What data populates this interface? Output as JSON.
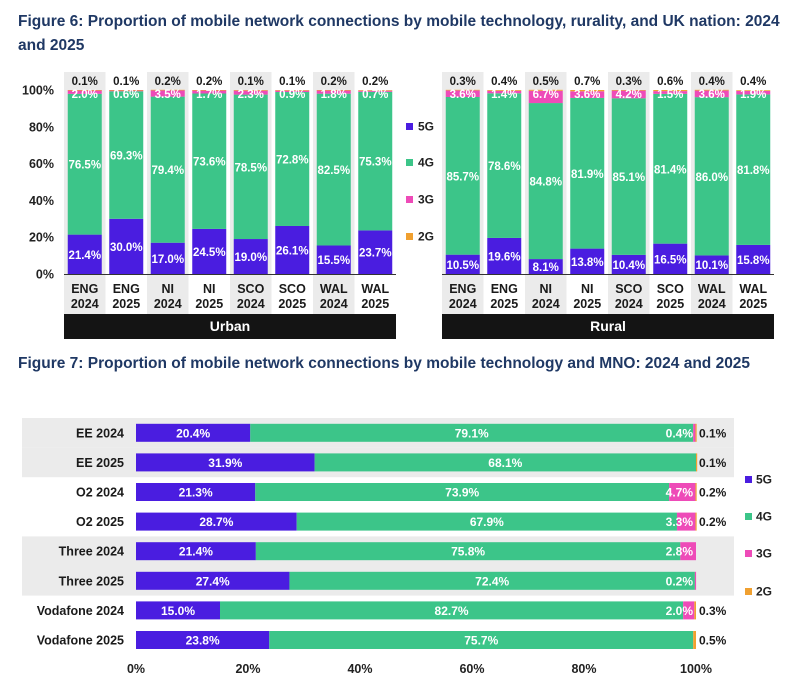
{
  "fig6": {
    "title": "Figure 6: Proportion of mobile network connections by mobile technology, rurality, and UK nation: 2024 and 2025",
    "chart_data": {
      "type": "bar",
      "stacked": true,
      "orientation": "vertical",
      "ylim": [
        0,
        100
      ],
      "yticks": [
        "0%",
        "20%",
        "40%",
        "60%",
        "80%",
        "100%"
      ],
      "groups": [
        {
          "name": "Urban",
          "bars": [
            {
              "nation": "ENG",
              "year": "2024",
              "g5": 21.4,
              "g4": 76.5,
              "g3": 2.0,
              "g2": 0.1,
              "l5": "21.4%",
              "l4": "76.5%",
              "l3": "2.0%",
              "l2": "0.1%"
            },
            {
              "nation": "ENG",
              "year": "2025",
              "g5": 30.0,
              "g4": 69.3,
              "g3": 0.6,
              "g2": 0.1,
              "l5": "30.0%",
              "l4": "69.3%",
              "l3": "0.6%",
              "l2": "0.1%"
            },
            {
              "nation": "NI",
              "year": "2024",
              "g5": 17.0,
              "g4": 79.4,
              "g3": 3.5,
              "g2": 0.2,
              "l5": "17.0%",
              "l4": "79.4%",
              "l3": "3.5%",
              "l2": "0.2%"
            },
            {
              "nation": "NI",
              "year": "2025",
              "g5": 24.5,
              "g4": 73.6,
              "g3": 1.7,
              "g2": 0.2,
              "l5": "24.5%",
              "l4": "73.6%",
              "l3": "1.7%",
              "l2": "0.2%"
            },
            {
              "nation": "SCO",
              "year": "2024",
              "g5": 19.0,
              "g4": 78.5,
              "g3": 2.3,
              "g2": 0.1,
              "l5": "19.0%",
              "l4": "78.5%",
              "l3": "2.3%",
              "l2": "0.1%"
            },
            {
              "nation": "SCO",
              "year": "2025",
              "g5": 26.1,
              "g4": 72.8,
              "g3": 0.9,
              "g2": 0.1,
              "l5": "26.1%",
              "l4": "72.8%",
              "l3": "0.9%",
              "l2": "0.1%"
            },
            {
              "nation": "WAL",
              "year": "2024",
              "g5": 15.5,
              "g4": 82.5,
              "g3": 1.8,
              "g2": 0.2,
              "l5": "15.5%",
              "l4": "82.5%",
              "l3": "1.8%",
              "l2": "0.2%"
            },
            {
              "nation": "WAL",
              "year": "2025",
              "g5": 23.7,
              "g4": 75.3,
              "g3": 0.7,
              "g2": 0.2,
              "l5": "23.7%",
              "l4": "75.3%",
              "l3": "0.7%",
              "l2": "0.2%"
            }
          ]
        },
        {
          "name": "Rural",
          "bars": [
            {
              "nation": "ENG",
              "year": "2024",
              "g5": 10.5,
              "g4": 85.7,
              "g3": 3.6,
              "g2": 0.3,
              "l5": "10.5%",
              "l4": "85.7%",
              "l3": "3.6%",
              "l2": "0.3%"
            },
            {
              "nation": "ENG",
              "year": "2025",
              "g5": 19.6,
              "g4": 78.6,
              "g3": 1.4,
              "g2": 0.4,
              "l5": "19.6%",
              "l4": "78.6%",
              "l3": "1.4%",
              "l2": "0.4%"
            },
            {
              "nation": "NI",
              "year": "2024",
              "g5": 8.1,
              "g4": 84.8,
              "g3": 6.7,
              "g2": 0.5,
              "l5": "8.1%",
              "l4": "84.8%",
              "l3": "6.7%",
              "l2": "0.5%"
            },
            {
              "nation": "NI",
              "year": "2025",
              "g5": 13.8,
              "g4": 81.9,
              "g3": 3.6,
              "g2": 0.7,
              "l5": "13.8%",
              "l4": "81.9%",
              "l3": "3.6%",
              "l2": "0.7%"
            },
            {
              "nation": "SCO",
              "year": "2024",
              "g5": 10.4,
              "g4": 85.1,
              "g3": 4.2,
              "g2": 0.3,
              "l5": "10.4%",
              "l4": "85.1%",
              "l3": "4.2%",
              "l2": "0.3%"
            },
            {
              "nation": "SCO",
              "year": "2025",
              "g5": 16.5,
              "g4": 81.4,
              "g3": 1.5,
              "g2": 0.6,
              "l5": "16.5%",
              "l4": "81.4%",
              "l3": "1.5%",
              "l2": "0.6%"
            },
            {
              "nation": "WAL",
              "year": "2024",
              "g5": 10.1,
              "g4": 86.0,
              "g3": 3.6,
              "g2": 0.4,
              "l5": "10.1%",
              "l4": "86.0%",
              "l3": "3.6%",
              "l2": "0.4%"
            },
            {
              "nation": "WAL",
              "year": "2025",
              "g5": 15.8,
              "g4": 81.8,
              "g3": 1.9,
              "g2": 0.4,
              "l5": "15.8%",
              "l4": "81.8%",
              "l3": "1.9%",
              "l2": "0.4%"
            }
          ]
        }
      ],
      "legend": [
        "5G",
        "4G",
        "3G",
        "2G"
      ],
      "legend_position": "right"
    }
  },
  "fig7": {
    "title": "Figure 7: Proportion of mobile network connections by mobile technology and MNO: 2024 and 2025",
    "chart_data": {
      "type": "bar",
      "stacked": true,
      "orientation": "horizontal",
      "xlim": [
        0,
        100
      ],
      "xticks": [
        "0%",
        "20%",
        "40%",
        "60%",
        "80%",
        "100%"
      ],
      "rows": [
        {
          "label": "EE 2024",
          "g5": 20.4,
          "g4": 79.1,
          "g3": 0.4,
          "g2": 0.1,
          "l5": "20.4%",
          "l4": "79.1%",
          "l3": "0.4%",
          "l2": "0.1%",
          "shaded": true
        },
        {
          "label": "EE 2025",
          "g5": 31.9,
          "g4": 68.1,
          "g3": 0.0,
          "g2": 0.1,
          "l5": "31.9%",
          "l4": "68.1%",
          "l3": "",
          "l2": "0.1%",
          "shaded": true
        },
        {
          "label": "O2 2024",
          "g5": 21.3,
          "g4": 73.9,
          "g3": 4.7,
          "g2": 0.2,
          "l5": "21.3%",
          "l4": "73.9%",
          "l3": "4.7%",
          "l2": "0.2%",
          "shaded": false
        },
        {
          "label": "O2 2025",
          "g5": 28.7,
          "g4": 67.9,
          "g3": 3.3,
          "g2": 0.2,
          "l5": "28.7%",
          "l4": "67.9%",
          "l3": "3.3%",
          "l2": "0.2%",
          "shaded": false
        },
        {
          "label": "Three 2024",
          "g5": 21.4,
          "g4": 75.8,
          "g3": 2.8,
          "g2": 0.0,
          "l5": "21.4%",
          "l4": "75.8%",
          "l3": "2.8%",
          "l2": "",
          "shaded": true
        },
        {
          "label": "Three 2025",
          "g5": 27.4,
          "g4": 72.4,
          "g3": 0.2,
          "g2": 0.0,
          "l5": "27.4%",
          "l4": "72.4%",
          "l3": "0.2%",
          "l2": "",
          "shaded": true
        },
        {
          "label": "Vodafone 2024",
          "g5": 15.0,
          "g4": 82.7,
          "g3": 2.0,
          "g2": 0.3,
          "l5": "15.0%",
          "l4": "82.7%",
          "l3": "2.0%",
          "l2": "0.3%",
          "shaded": false
        },
        {
          "label": "Vodafone 2025",
          "g5": 23.8,
          "g4": 75.7,
          "g3": 0.0,
          "g2": 0.5,
          "l5": "23.8%",
          "l4": "75.7%",
          "l3": "",
          "l2": "0.5%",
          "shaded": false
        }
      ],
      "legend": [
        "5G",
        "4G",
        "3G",
        "2G"
      ],
      "legend_position": "right"
    }
  },
  "colors": {
    "g5": "#4a1de0",
    "g4": "#3cc589",
    "g3": "#ee4bb8",
    "g2": "#f0a030",
    "group_bar": "#141414",
    "shade": "#ebebeb",
    "title": "#1f3864"
  }
}
